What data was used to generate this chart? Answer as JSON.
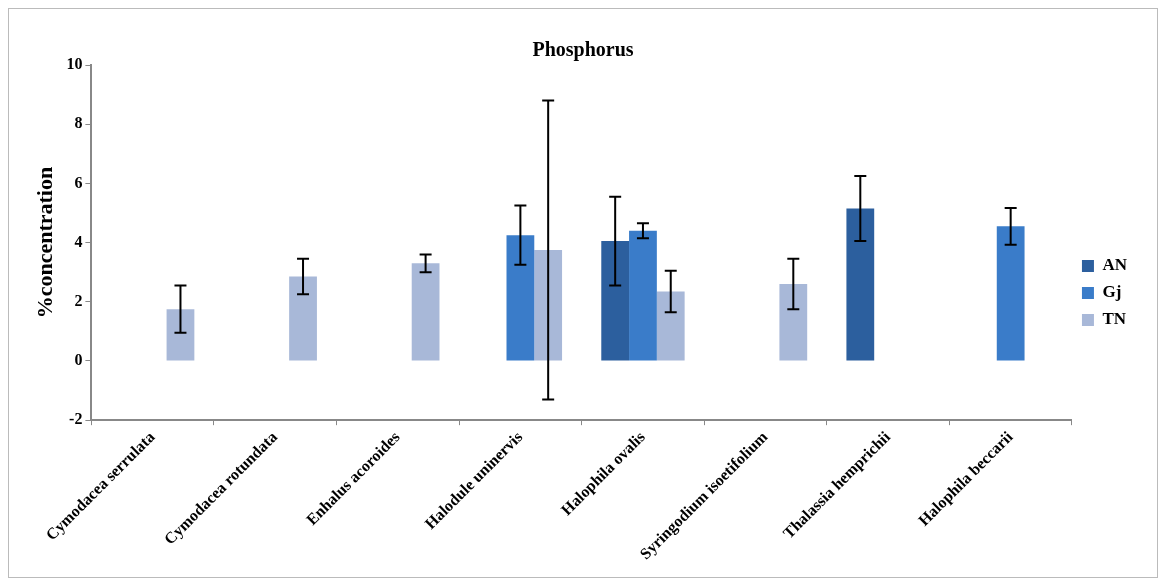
{
  "chart_data": {
    "type": "bar",
    "title": "Phosphorus",
    "ylabel": "%concentration",
    "categories": [
      "Cymodacea serrulata",
      "Cymodacea rotundata",
      "Enhalus acoroides",
      "Halodule uninervis",
      "Halophila ovalis",
      "Syringodium isoetifolium",
      "Thalassia hemprichii",
      "Halophila beccarii"
    ],
    "series": [
      {
        "name": "AN",
        "color": "#2c5f9e",
        "values": [
          null,
          null,
          null,
          null,
          4.05,
          null,
          5.15,
          null
        ],
        "errors": [
          null,
          null,
          null,
          null,
          1.5,
          null,
          1.1,
          null
        ]
      },
      {
        "name": "Gj",
        "color": "#3a7cc9",
        "values": [
          null,
          null,
          null,
          4.25,
          4.4,
          null,
          null,
          4.55
        ],
        "errors": [
          null,
          null,
          null,
          1.0,
          0.25,
          null,
          null,
          0.62
        ]
      },
      {
        "name": "TN",
        "color": "#a8b8d8",
        "values": [
          1.75,
          2.85,
          3.3,
          3.75,
          2.35,
          2.6,
          null,
          null
        ],
        "errors": [
          0.8,
          0.6,
          0.3,
          5.05,
          0.7,
          0.85,
          null,
          null
        ]
      }
    ],
    "ylim": [
      -2,
      10
    ],
    "yticks": [
      -2,
      0,
      2,
      4,
      6,
      8,
      10
    ],
    "grid": false,
    "legend": "right"
  }
}
